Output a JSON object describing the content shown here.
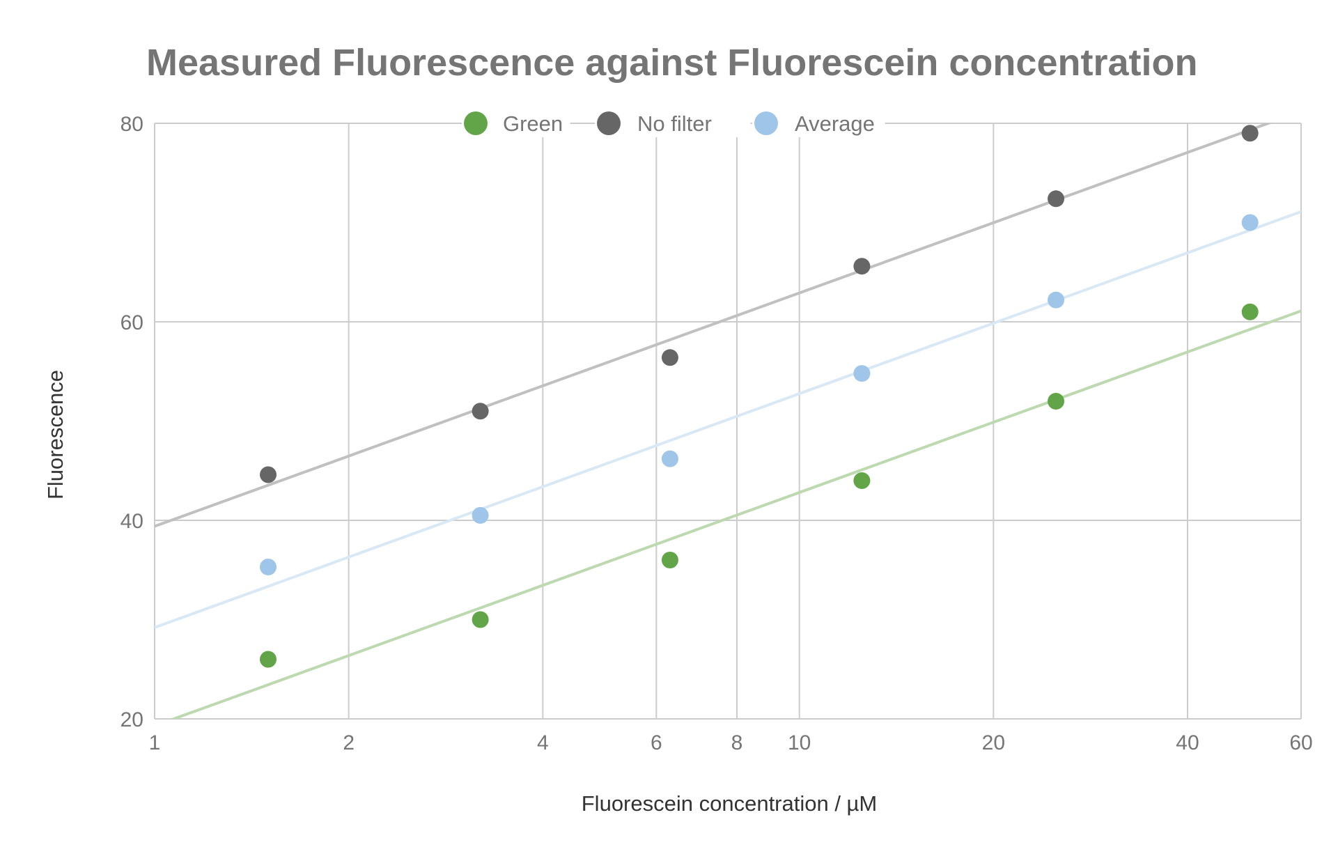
{
  "chart_data": {
    "type": "scatter",
    "title": "Measured Fluorescence against Fluorescein concentration",
    "xlabel": "Fluorescein concentration / µM",
    "ylabel": "Fluorescence",
    "x_scale": "log",
    "xlim": [
      1,
      60
    ],
    "ylim": [
      20,
      80
    ],
    "x_ticks": [
      1,
      2,
      4,
      6,
      8,
      10,
      20,
      40,
      60
    ],
    "x_tick_labels": [
      "1",
      "2",
      "4",
      "6",
      "8",
      "10",
      "20",
      "40",
      "60"
    ],
    "y_ticks": [
      20,
      40,
      60,
      80
    ],
    "y_tick_labels": [
      "20",
      "40",
      "60",
      "80"
    ],
    "grid": true,
    "legend_position": "top",
    "trendlines": "logarithmic",
    "series": [
      {
        "name": "Green",
        "color": "#62a549",
        "trend_color": "#bcd9b0",
        "x": [
          1.5,
          3.2,
          6.3,
          12.5,
          25,
          50
        ],
        "y": [
          26,
          30,
          36,
          44,
          52,
          61
        ],
        "trend": [
          1,
          19.3,
          60,
          61.1
        ]
      },
      {
        "name": "No filter",
        "color": "#666666",
        "trend_color": "#c0c0c0",
        "x": [
          1.5,
          3.2,
          6.3,
          12.5,
          25,
          50
        ],
        "y": [
          44.6,
          51,
          56.4,
          65.6,
          72.4,
          79
        ],
        "trend": [
          1,
          39.4,
          60,
          81.2
        ]
      },
      {
        "name": "Average",
        "color": "#9fc5e8",
        "trend_color": "#d9e8f5",
        "x": [
          1.5,
          3.2,
          6.3,
          12.5,
          25,
          50
        ],
        "y": [
          35.3,
          40.5,
          46.2,
          54.8,
          62.2,
          70
        ],
        "trend": [
          1,
          29.2,
          60,
          71.1
        ]
      }
    ]
  }
}
